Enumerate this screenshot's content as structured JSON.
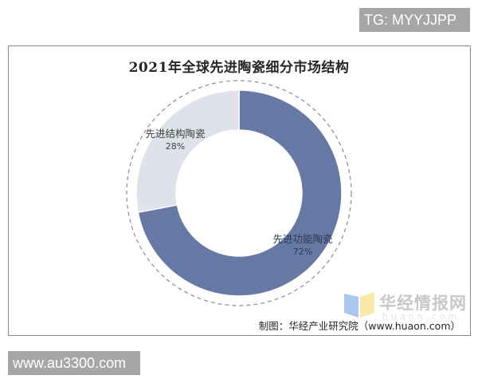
{
  "badges": {
    "top_right": "TG: MYYJJPP",
    "bottom_left": "www.au3300.com"
  },
  "watermark": {
    "brand": "华经情报网",
    "sub": "huaon.com"
  },
  "source": "制图：华经产业研究院（www.huaon.com）",
  "colors": {
    "functional": "#6678a4",
    "structural": "#dfe2ea",
    "dashed_ring": "#8c8c8c"
  },
  "chart_data": {
    "type": "pie",
    "variant": "donut",
    "title": "2021年全球先进陶瓷细分市场结构",
    "categories": [
      "先进功能陶瓷",
      "先进结构陶瓷"
    ],
    "values": [
      72,
      28
    ],
    "unit": "%",
    "labels": [
      {
        "name": "先进功能陶瓷",
        "pct": "72%"
      },
      {
        "name": "先进结构陶瓷",
        "pct": "28%"
      }
    ],
    "start_angle": "12 o'clock, clockwise",
    "legend": "none (inline labels)"
  }
}
